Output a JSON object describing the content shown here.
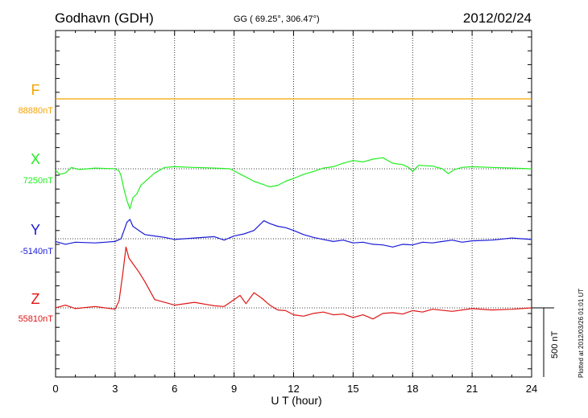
{
  "header": {
    "station": "Godhavn (GDH)",
    "coords": "GG ( 69.25°, 306.47°)",
    "date": "2012/02/24"
  },
  "footer": {
    "plotted": "Plotted at 2012/03/26 01:01  UT"
  },
  "chart_data": {
    "type": "line",
    "title": "Godhavn (GDH)",
    "subtitle": "GG ( 69.25°, 306.47°)",
    "date": "2012/02/24",
    "xlabel": "U T (hour)",
    "xlim": [
      0,
      24
    ],
    "xticks": [
      "0",
      "3",
      "6",
      "9",
      "12",
      "15",
      "18",
      "21",
      "24"
    ],
    "grid": "dotted vertical lines every 3 hours; dotted baseline per component",
    "scale_bar": "500 nT",
    "series": [
      {
        "name": "F",
        "baseline_label": "88880nT",
        "color": "#f5a300",
        "points": [
          [
            0,
            0
          ],
          [
            6,
            0
          ],
          [
            12,
            0
          ],
          [
            18,
            0
          ],
          [
            24,
            0
          ]
        ]
      },
      {
        "name": "X",
        "baseline_label": "7250nT",
        "color": "#22ee22",
        "points": [
          [
            0,
            -10
          ],
          [
            0.2,
            -40
          ],
          [
            0.5,
            -30
          ],
          [
            0.8,
            10
          ],
          [
            1.2,
            -5
          ],
          [
            2,
            5
          ],
          [
            3,
            0
          ],
          [
            3.2,
            -15
          ],
          [
            3.3,
            -50
          ],
          [
            3.45,
            -150
          ],
          [
            3.6,
            -230
          ],
          [
            3.75,
            -290
          ],
          [
            3.9,
            -210
          ],
          [
            4.1,
            -180
          ],
          [
            4.3,
            -120
          ],
          [
            4.6,
            -80
          ],
          [
            5,
            -30
          ],
          [
            5.5,
            10
          ],
          [
            6,
            15
          ],
          [
            7,
            10
          ],
          [
            8,
            5
          ],
          [
            8.8,
            0
          ],
          [
            9.2,
            -30
          ],
          [
            9.6,
            -60
          ],
          [
            10,
            -90
          ],
          [
            10.4,
            -110
          ],
          [
            10.8,
            -130
          ],
          [
            11.2,
            -120
          ],
          [
            11.6,
            -90
          ],
          [
            12,
            -70
          ],
          [
            12.5,
            -40
          ],
          [
            13,
            -20
          ],
          [
            13.5,
            5
          ],
          [
            14,
            15
          ],
          [
            14.5,
            40
          ],
          [
            15,
            60
          ],
          [
            15.5,
            50
          ],
          [
            16,
            70
          ],
          [
            16.5,
            80
          ],
          [
            17,
            40
          ],
          [
            17.5,
            30
          ],
          [
            17.8,
            10
          ],
          [
            18,
            -20
          ],
          [
            18.3,
            25
          ],
          [
            19,
            20
          ],
          [
            19.5,
            0
          ],
          [
            19.8,
            -35
          ],
          [
            20.1,
            -5
          ],
          [
            20.5,
            10
          ],
          [
            21,
            15
          ],
          [
            22,
            10
          ],
          [
            23,
            5
          ],
          [
            24,
            0
          ]
        ]
      },
      {
        "name": "Y",
        "baseline_label": "-5140nT",
        "color": "#1a1ad6",
        "points": [
          [
            0,
            -20
          ],
          [
            0.5,
            -40
          ],
          [
            1,
            -25
          ],
          [
            2,
            -30
          ],
          [
            3,
            -20
          ],
          [
            3.3,
            0
          ],
          [
            3.5,
            80
          ],
          [
            3.6,
            120
          ],
          [
            3.75,
            140
          ],
          [
            3.9,
            90
          ],
          [
            4.2,
            60
          ],
          [
            4.5,
            30
          ],
          [
            5,
            20
          ],
          [
            5.5,
            10
          ],
          [
            6,
            -5
          ],
          [
            7,
            5
          ],
          [
            8,
            15
          ],
          [
            8.5,
            -10
          ],
          [
            9,
            20
          ],
          [
            9.5,
            35
          ],
          [
            10,
            60
          ],
          [
            10.5,
            130
          ],
          [
            10.8,
            110
          ],
          [
            11.2,
            90
          ],
          [
            11.6,
            80
          ],
          [
            12,
            60
          ],
          [
            12.5,
            30
          ],
          [
            13,
            10
          ],
          [
            13.5,
            -5
          ],
          [
            14,
            -20
          ],
          [
            14.5,
            -10
          ],
          [
            15,
            -30
          ],
          [
            15.5,
            -25
          ],
          [
            16,
            -40
          ],
          [
            16.5,
            -45
          ],
          [
            17,
            -60
          ],
          [
            17.5,
            -40
          ],
          [
            18,
            -45
          ],
          [
            18.5,
            -25
          ],
          [
            19,
            -30
          ],
          [
            19.5,
            -20
          ],
          [
            20,
            -10
          ],
          [
            20.5,
            -25
          ],
          [
            21,
            -15
          ],
          [
            22,
            -10
          ],
          [
            23,
            5
          ],
          [
            24,
            -5
          ]
        ]
      },
      {
        "name": "Z",
        "baseline_label": "55810nT",
        "color": "#e01515",
        "points": [
          [
            0,
            0
          ],
          [
            0.5,
            20
          ],
          [
            1,
            -5
          ],
          [
            2,
            10
          ],
          [
            3,
            -10
          ],
          [
            3.2,
            50
          ],
          [
            3.4,
            260
          ],
          [
            3.55,
            440
          ],
          [
            3.7,
            360
          ],
          [
            3.9,
            320
          ],
          [
            4.2,
            260
          ],
          [
            4.5,
            190
          ],
          [
            5,
            60
          ],
          [
            5.5,
            40
          ],
          [
            6,
            20
          ],
          [
            7,
            40
          ],
          [
            8,
            15
          ],
          [
            8.5,
            10
          ],
          [
            9,
            60
          ],
          [
            9.3,
            90
          ],
          [
            9.6,
            30
          ],
          [
            10,
            110
          ],
          [
            10.4,
            70
          ],
          [
            10.8,
            20
          ],
          [
            11.2,
            -15
          ],
          [
            11.6,
            -20
          ],
          [
            12,
            -50
          ],
          [
            12.5,
            -60
          ],
          [
            13,
            -40
          ],
          [
            13.5,
            -30
          ],
          [
            14,
            -50
          ],
          [
            14.5,
            -45
          ],
          [
            15,
            -70
          ],
          [
            15.5,
            -50
          ],
          [
            16,
            -80
          ],
          [
            16.5,
            -40
          ],
          [
            17,
            -35
          ],
          [
            17.5,
            -45
          ],
          [
            18,
            -20
          ],
          [
            18.5,
            -30
          ],
          [
            19,
            -10
          ],
          [
            20,
            -25
          ],
          [
            21,
            -5
          ],
          [
            22,
            -15
          ],
          [
            23,
            -10
          ],
          [
            24,
            0
          ]
        ]
      }
    ]
  }
}
